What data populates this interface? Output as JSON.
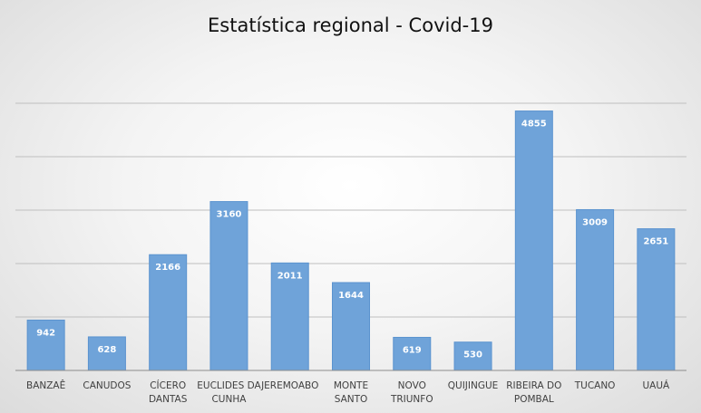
{
  "chart_data": {
    "type": "bar",
    "title": "Estatística regional - Covid-19",
    "xlabel": "",
    "ylabel": "",
    "ylim": [
      0,
      5000
    ],
    "grid": true,
    "legend": "none",
    "colors": {
      "bar": "#6fa3d9",
      "bar_edge": "#5b93cf",
      "grid": "#bfbfbf",
      "label": "#ffffff",
      "axis_text": "#404040"
    },
    "categories": [
      [
        "BANZAÊ"
      ],
      [
        "CANUDOS"
      ],
      [
        "CÍCERO",
        "DANTAS"
      ],
      [
        "EUCLIDES DA",
        "CUNHA"
      ],
      [
        "JEREMOABO"
      ],
      [
        "MONTE",
        "SANTO"
      ],
      [
        "NOVO",
        "TRIUNFO"
      ],
      [
        "QUIJINGUE"
      ],
      [
        "RIBEIRA DO",
        "POMBAL"
      ],
      [
        "TUCANO"
      ],
      [
        "UAUÁ"
      ]
    ],
    "values": [
      942,
      628,
      2166,
      3160,
      2011,
      1644,
      619,
      530,
      4855,
      3009,
      2651
    ]
  }
}
